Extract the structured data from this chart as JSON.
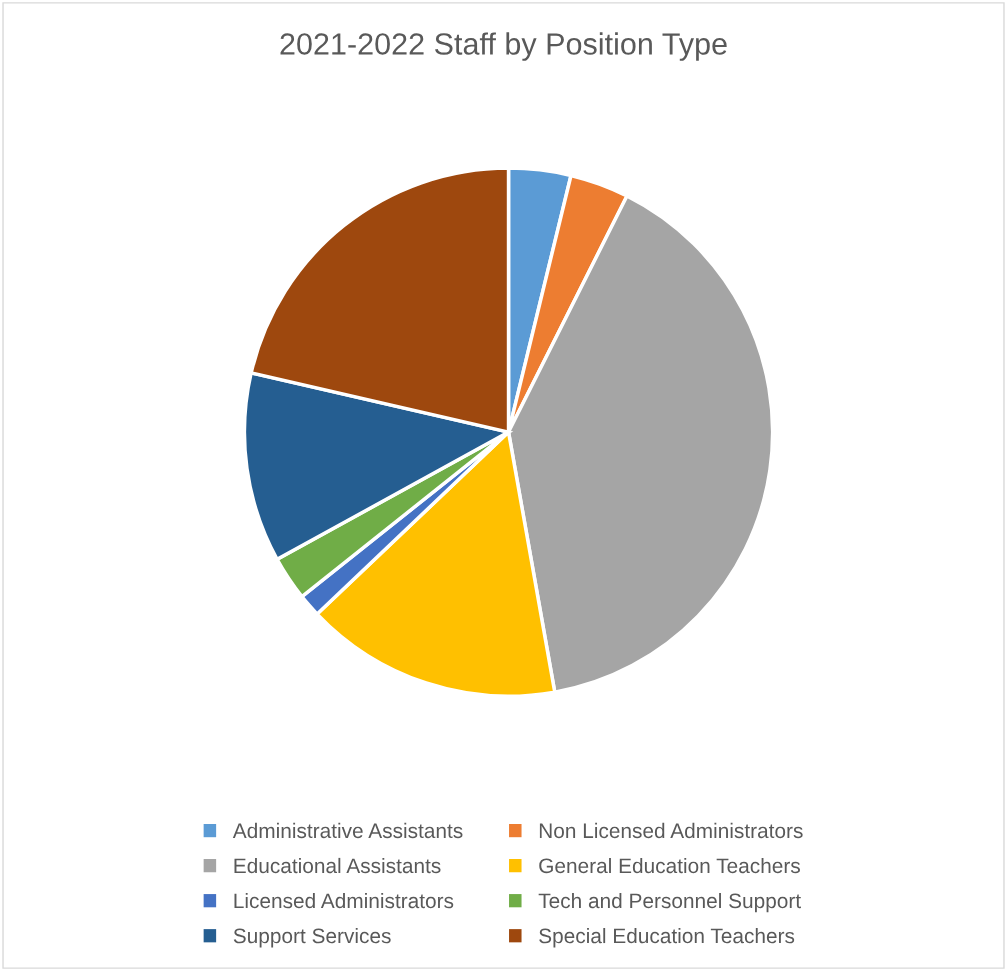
{
  "chart_data": {
    "type": "pie",
    "title": "2021-2022 Staff by Position Type",
    "categories": [
      "Administrative Assistants",
      "Non Licensed Administrators",
      "Educational Assistants",
      "General Education Teachers",
      "Licensed Administrators",
      "Tech and Personnel Support",
      "Support Services",
      "Special Education Teachers"
    ],
    "values": [
      3.8,
      3.6,
      39.8,
      15.7,
      1.4,
      2.7,
      11.6,
      21.4
    ],
    "colors": [
      "#5b9bd5",
      "#ed7d31",
      "#a5a5a5",
      "#ffc000",
      "#4472c4",
      "#70ad47",
      "#255e91",
      "#9e480e"
    ],
    "legend": "bottom"
  }
}
